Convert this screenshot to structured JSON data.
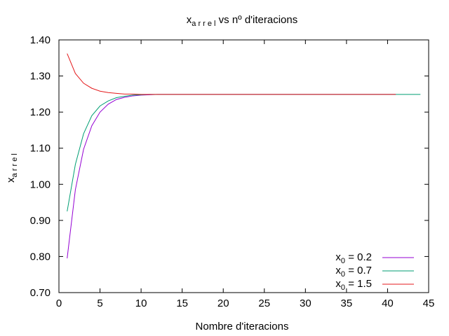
{
  "chart_data": {
    "type": "line",
    "title": {
      "base": "x",
      "subscript": "a r r e l",
      "rest": " vs nº d'iteracions"
    },
    "xlabel": "Nombre d'iteracions",
    "ylabel": {
      "base": "x",
      "subscript": "a r r e l"
    },
    "xlim": [
      0,
      45
    ],
    "ylim": [
      0.7,
      1.4
    ],
    "x_ticks": [
      0,
      5,
      10,
      15,
      20,
      25,
      30,
      35,
      40,
      45
    ],
    "y_ticks": [
      "0.70",
      "0.80",
      "0.90",
      "1.00",
      "1.10",
      "1.20",
      "1.30",
      "1.40"
    ],
    "grid": false,
    "legend_position": "bottom-right",
    "series": [
      {
        "label": {
          "base": "x",
          "subscript": "0",
          "rest": " = 0.2"
        },
        "color": "#9400d3",
        "x": [
          1,
          2,
          3,
          4,
          5,
          6,
          7,
          8,
          9,
          10,
          11,
          12,
          20,
          30,
          41
        ],
        "y": [
          0.795,
          0.985,
          1.097,
          1.162,
          1.2,
          1.222,
          1.235,
          1.241,
          1.245,
          1.247,
          1.248,
          1.249,
          1.249,
          1.249,
          1.249
        ]
      },
      {
        "label": {
          "base": "x",
          "subscript": "0",
          "rest": " = 0.7"
        },
        "color": "#009e73",
        "x": [
          1,
          2,
          3,
          4,
          5,
          6,
          7,
          8,
          9,
          10,
          11,
          12,
          20,
          30,
          44
        ],
        "y": [
          0.925,
          1.055,
          1.14,
          1.19,
          1.217,
          1.231,
          1.24,
          1.244,
          1.247,
          1.248,
          1.249,
          1.249,
          1.249,
          1.249,
          1.249
        ]
      },
      {
        "label": {
          "base": "x",
          "subscript": "0",
          "rest": " = 1.5"
        },
        "color": "#e41a1c",
        "x": [
          1,
          2,
          3,
          4,
          5,
          6,
          7,
          8,
          9,
          10,
          11,
          12,
          20,
          30,
          41
        ],
        "y": [
          1.362,
          1.307,
          1.28,
          1.266,
          1.258,
          1.254,
          1.252,
          1.25,
          1.25,
          1.249,
          1.249,
          1.249,
          1.249,
          1.249,
          1.249
        ]
      }
    ]
  }
}
